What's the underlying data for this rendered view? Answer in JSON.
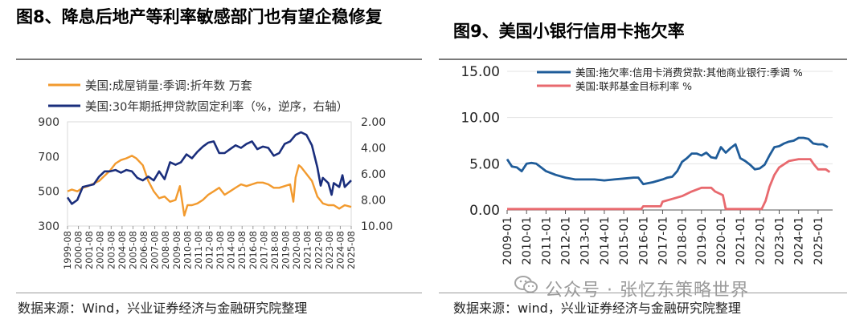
{
  "left": {
    "title": "图8、降息后地产等利率敏感部门也有望企稳修复",
    "source": "数据来源：Wind，兴业证券经济与金融研究院整理"
  },
  "right": {
    "title": "图9、美国小银行信用卡拖欠率",
    "source": "数据来源：wind，兴业证券经济与金融研究院整理"
  },
  "watermark": "公众号 · 张忆东策略世界",
  "chart_data": [
    {
      "type": "line",
      "title": "图8、降息后地产等利率敏感部门也有望企稳修复",
      "x_ticks": [
        "1999-08",
        "2000-08",
        "2001-08",
        "2002-08",
        "2003-08",
        "2004-08",
        "2005-08",
        "2006-08",
        "2007-08",
        "2008-08",
        "2009-08",
        "2010-08",
        "2011-08",
        "2012-08",
        "2013-08",
        "2014-08",
        "2015-08",
        "2016-08",
        "2017-08",
        "2018-08",
        "2019-08",
        "2020-08",
        "2021-08",
        "2022-08",
        "2023-08",
        "2024-08",
        "2025-08"
      ],
      "y_left": {
        "ticks": [
          "900",
          "700",
          "500",
          "300"
        ],
        "lim": [
          300,
          900
        ]
      },
      "y_right": {
        "ticks": [
          "2.00",
          "4.00",
          "6.00",
          "8.00",
          "10.00"
        ],
        "lim": [
          2,
          10
        ],
        "inverted": true
      },
      "legend_placement": "top",
      "series": [
        {
          "name": "美国:成屋销量:季调:折年数 万套",
          "axis": "left",
          "color": "#F29A2E",
          "x": [
            1999.6,
            2000.0,
            2000.5,
            2001.0,
            2001.5,
            2002.0,
            2002.5,
            2003.0,
            2003.5,
            2004.0,
            2004.5,
            2005.0,
            2005.5,
            2005.9,
            2006.5,
            2007.0,
            2007.5,
            2008.0,
            2008.5,
            2009.0,
            2009.5,
            2009.9,
            2010.3,
            2010.6,
            2011.0,
            2011.5,
            2012.0,
            2012.5,
            2013.0,
            2013.5,
            2014.0,
            2014.5,
            2015.0,
            2015.5,
            2016.0,
            2016.5,
            2017.0,
            2017.5,
            2018.0,
            2018.5,
            2019.0,
            2019.5,
            2020.0,
            2020.3,
            2020.5,
            2020.8,
            2021.0,
            2021.5,
            2022.0,
            2022.5,
            2023.0,
            2023.5,
            2024.0,
            2024.5,
            2025.0,
            2025.6
          ],
          "y": [
            500,
            510,
            500,
            520,
            530,
            545,
            560,
            590,
            620,
            660,
            680,
            690,
            705,
            690,
            650,
            560,
            500,
            460,
            470,
            440,
            450,
            530,
            360,
            420,
            420,
            430,
            450,
            480,
            500,
            520,
            480,
            500,
            520,
            540,
            530,
            540,
            550,
            550,
            540,
            520,
            520,
            530,
            540,
            440,
            580,
            650,
            640,
            600,
            560,
            470,
            430,
            420,
            420,
            400,
            420,
            410
          ]
        },
        {
          "name": "美国:30年期抵押贷款固定利率（%，逆序，右轴）",
          "axis": "right",
          "color": "#1A2E7C",
          "x": [
            1999.6,
            2000.0,
            2000.5,
            2001.0,
            2001.5,
            2002.0,
            2002.5,
            2003.0,
            2003.5,
            2004.0,
            2004.5,
            2005.0,
            2005.5,
            2006.0,
            2006.5,
            2007.0,
            2007.5,
            2008.0,
            2008.5,
            2009.0,
            2009.5,
            2010.0,
            2010.5,
            2011.0,
            2011.5,
            2012.0,
            2012.5,
            2013.0,
            2013.5,
            2014.0,
            2014.5,
            2015.0,
            2015.5,
            2016.0,
            2016.5,
            2017.0,
            2017.5,
            2018.0,
            2018.5,
            2019.0,
            2019.5,
            2020.0,
            2020.5,
            2021.0,
            2021.5,
            2022.0,
            2022.5,
            2022.8,
            2023.0,
            2023.5,
            2023.8,
            2024.0,
            2024.5,
            2024.8,
            2025.0,
            2025.6
          ],
          "y": [
            7.8,
            8.3,
            8.0,
            7.0,
            6.9,
            6.8,
            6.2,
            5.8,
            5.8,
            5.7,
            5.9,
            5.7,
            5.8,
            6.3,
            6.5,
            6.2,
            6.5,
            5.8,
            6.4,
            5.1,
            5.3,
            5.1,
            4.5,
            4.8,
            4.3,
            3.9,
            3.6,
            3.5,
            4.4,
            4.4,
            4.1,
            3.8,
            4.0,
            3.7,
            3.5,
            4.1,
            3.9,
            4.0,
            4.6,
            4.4,
            3.7,
            3.5,
            3.0,
            2.8,
            3.0,
            3.8,
            5.5,
            6.9,
            6.3,
            6.7,
            7.6,
            6.7,
            7.0,
            6.1,
            7.0,
            6.5
          ]
        }
      ]
    },
    {
      "type": "line",
      "title": "图9、美国小银行信用卡拖欠率",
      "x_ticks": [
        "2009-01",
        "2010-01",
        "2011-01",
        "2012-01",
        "2013-01",
        "2014-01",
        "2015-01",
        "2016-01",
        "2017-01",
        "2018-01",
        "2019-01",
        "2020-01",
        "2021-01",
        "2022-01",
        "2023-01",
        "2024-01",
        "2025-01"
      ],
      "y": {
        "ticks": [
          "15.00",
          "10.00",
          "5.00",
          "0.00"
        ],
        "lim": [
          0,
          15
        ]
      },
      "legend_placement": "top-left",
      "series": [
        {
          "name": "美国:拖欠率:信用卡消费贷款:其他商业银行:季调 %",
          "color": "#1F5C99",
          "x": [
            2009.0,
            2009.25,
            2009.5,
            2009.75,
            2010.0,
            2010.25,
            2010.5,
            2010.75,
            2011.0,
            2011.5,
            2012.0,
            2012.5,
            2013.0,
            2013.5,
            2014.0,
            2014.5,
            2015.0,
            2015.5,
            2015.75,
            2016.0,
            2016.5,
            2017.0,
            2017.25,
            2017.5,
            2017.75,
            2018.0,
            2018.25,
            2018.5,
            2018.75,
            2019.0,
            2019.25,
            2019.5,
            2019.75,
            2020.0,
            2020.25,
            2020.5,
            2020.75,
            2021.0,
            2021.25,
            2021.5,
            2021.75,
            2022.0,
            2022.25,
            2022.5,
            2022.75,
            2023.0,
            2023.25,
            2023.5,
            2023.75,
            2024.0,
            2024.25,
            2024.5,
            2024.75,
            2025.0,
            2025.25,
            2025.5
          ],
          "y": [
            5.5,
            4.7,
            4.6,
            4.2,
            5.0,
            5.1,
            5.0,
            4.6,
            4.2,
            3.8,
            3.5,
            3.3,
            3.3,
            3.3,
            3.2,
            3.3,
            3.4,
            3.5,
            3.5,
            2.8,
            3.0,
            3.3,
            3.5,
            3.6,
            4.2,
            5.2,
            5.6,
            6.1,
            6.1,
            5.9,
            6.2,
            5.7,
            5.6,
            6.8,
            6.2,
            6.7,
            7.1,
            5.6,
            5.3,
            4.9,
            4.4,
            4.5,
            4.9,
            5.9,
            6.8,
            6.9,
            7.2,
            7.4,
            7.5,
            7.8,
            7.8,
            7.7,
            7.2,
            7.1,
            7.1,
            6.8
          ]
        },
        {
          "name": "美国:联邦基金目标利率 %",
          "color": "#E8696E",
          "x": [
            2009.0,
            2015.9,
            2016.0,
            2016.9,
            2017.0,
            2017.5,
            2018.0,
            2018.5,
            2019.0,
            2019.5,
            2019.7,
            2020.1,
            2020.25,
            2022.1,
            2022.3,
            2022.5,
            2022.75,
            2023.0,
            2023.5,
            2024.0,
            2024.6,
            2024.8,
            2025.0,
            2025.4,
            2025.6
          ],
          "y": [
            0.1,
            0.1,
            0.4,
            0.4,
            0.9,
            1.2,
            1.5,
            2.0,
            2.4,
            2.4,
            2.0,
            1.6,
            0.1,
            0.1,
            1.0,
            2.5,
            3.8,
            4.6,
            5.3,
            5.5,
            5.5,
            4.9,
            4.4,
            4.4,
            4.1
          ]
        }
      ]
    }
  ]
}
